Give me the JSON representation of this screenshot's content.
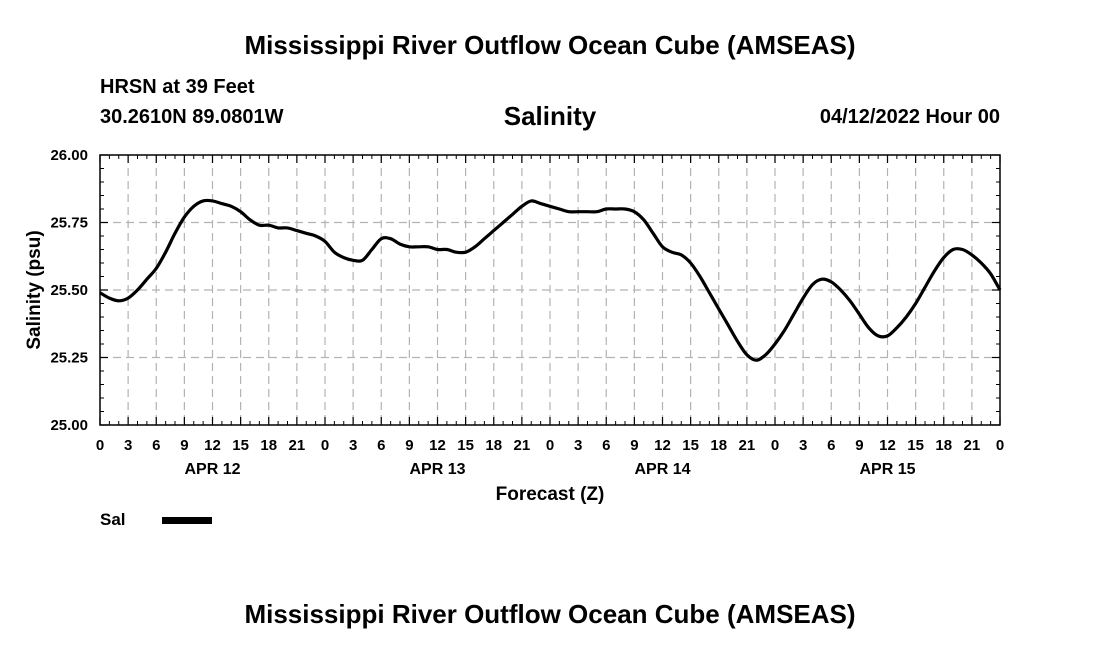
{
  "header": {
    "title": "Mississippi River Outflow Ocean Cube (AMSEAS)",
    "station": "HRSN at 39 Feet",
    "coords": "30.2610N  89.0801W",
    "variable": "Salinity",
    "date": "04/12/2022 Hour 00"
  },
  "footer": {
    "title": "Mississippi River Outflow Ocean Cube (AMSEAS)"
  },
  "legend": {
    "label": "Sal",
    "color": "#000000"
  },
  "chart_data": {
    "type": "line",
    "title": "Salinity",
    "xlabel": "Forecast (Z)",
    "ylabel": "Salinity (psu)",
    "xlim": [
      0,
      96
    ],
    "ylim": [
      25.0,
      26.0
    ],
    "grid": true,
    "x_ticks": [
      0,
      3,
      6,
      9,
      12,
      15,
      18,
      21,
      24,
      27,
      30,
      33,
      36,
      39,
      42,
      45,
      48,
      51,
      54,
      57,
      60,
      63,
      66,
      69,
      72,
      75,
      78,
      81,
      84,
      87,
      90,
      93,
      96
    ],
    "x_tick_labels": [
      "0",
      "3",
      "6",
      "9",
      "12",
      "15",
      "18",
      "21",
      "0",
      "3",
      "6",
      "9",
      "12",
      "15",
      "18",
      "21",
      "0",
      "3",
      "6",
      "9",
      "12",
      "15",
      "18",
      "21",
      "0",
      "3",
      "6",
      "9",
      "12",
      "15",
      "18",
      "21",
      "0"
    ],
    "day_labels": [
      {
        "x": 12,
        "label": "APR 12"
      },
      {
        "x": 36,
        "label": "APR 13"
      },
      {
        "x": 60,
        "label": "APR 14"
      },
      {
        "x": 84,
        "label": "APR 15"
      }
    ],
    "y_ticks": [
      25.0,
      25.25,
      25.5,
      25.75,
      26.0
    ],
    "y_tick_labels": [
      "25.00",
      "25.25",
      "25.50",
      "25.75",
      "26.00"
    ],
    "series": [
      {
        "name": "Sal",
        "x": [
          0,
          1,
          2,
          3,
          4,
          5,
          6,
          7,
          8,
          9,
          10,
          11,
          12,
          13,
          14,
          15,
          16,
          17,
          18,
          19,
          20,
          21,
          22,
          23,
          24,
          25,
          26,
          27,
          28,
          29,
          30,
          31,
          32,
          33,
          34,
          35,
          36,
          37,
          38,
          39,
          40,
          41,
          42,
          43,
          44,
          45,
          46,
          47,
          48,
          49,
          50,
          51,
          52,
          53,
          54,
          55,
          56,
          57,
          58,
          59,
          60,
          61,
          62,
          63,
          64,
          65,
          66,
          67,
          68,
          69,
          70,
          71,
          72,
          73,
          74,
          75,
          76,
          77,
          78,
          79,
          80,
          81,
          82,
          83,
          84,
          85,
          86,
          87,
          88,
          89,
          90,
          91,
          92,
          93,
          94,
          95,
          96
        ],
        "values": [
          25.49,
          25.47,
          25.46,
          25.47,
          25.5,
          25.54,
          25.58,
          25.64,
          25.71,
          25.77,
          25.81,
          25.83,
          25.83,
          25.82,
          25.81,
          25.79,
          25.76,
          25.74,
          25.74,
          25.73,
          25.73,
          25.72,
          25.71,
          25.7,
          25.68,
          25.64,
          25.62,
          25.61,
          25.61,
          25.65,
          25.69,
          25.69,
          25.67,
          25.66,
          25.66,
          25.66,
          25.65,
          25.65,
          25.64,
          25.64,
          25.66,
          25.69,
          25.72,
          25.75,
          25.78,
          25.81,
          25.83,
          25.82,
          25.81,
          25.8,
          25.79,
          25.79,
          25.79,
          25.79,
          25.8,
          25.8,
          25.8,
          25.79,
          25.76,
          25.71,
          25.66,
          25.64,
          25.63,
          25.6,
          25.55,
          25.49,
          25.43,
          25.37,
          25.31,
          25.26,
          25.24,
          25.26,
          25.3,
          25.35,
          25.41,
          25.47,
          25.52,
          25.54,
          25.53,
          25.5,
          25.46,
          25.41,
          25.36,
          25.33,
          25.33,
          25.36,
          25.4,
          25.45,
          25.51,
          25.57,
          25.62,
          25.65,
          25.65,
          25.63,
          25.6,
          25.56,
          25.5
        ]
      }
    ]
  }
}
